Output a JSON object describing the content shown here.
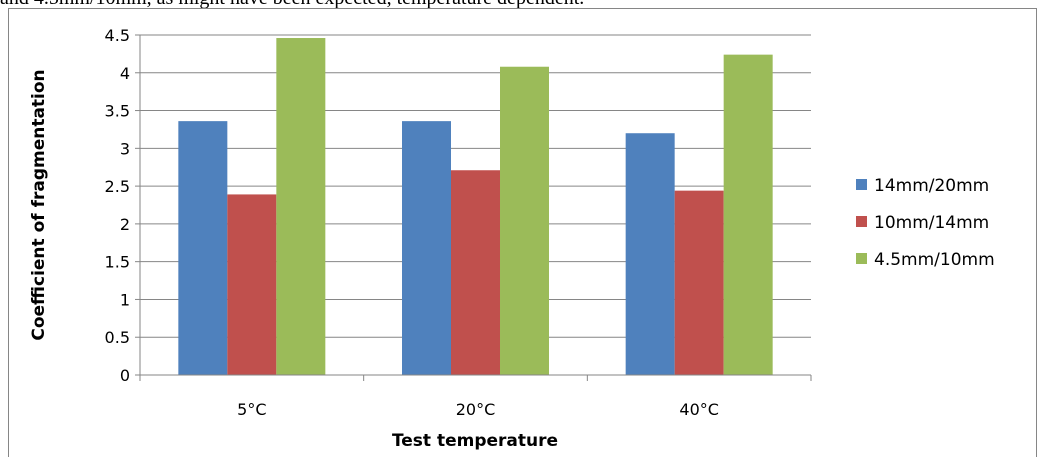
{
  "top_text": "and 4.5mm/10mm, as might have been expected, temperature dependent.",
  "chart_data": {
    "type": "bar",
    "title": "",
    "xlabel": "Test temperature",
    "ylabel": "Coefficient of fragmentation",
    "categories": [
      "5°C",
      "20°C",
      "40°C"
    ],
    "ylim": [
      0,
      4.5
    ],
    "yticks": [
      0,
      0.5,
      1,
      1.5,
      2,
      2.5,
      3,
      3.5,
      4,
      4.5
    ],
    "ytick_labels": [
      "0",
      "0.5",
      "1",
      "1.5",
      "2",
      "2.5",
      "3",
      "3.5",
      "4",
      "4.5"
    ],
    "grid": true,
    "legend_position": "right",
    "series": [
      {
        "name": "14mm/20mm",
        "color": "#4F81BD",
        "values": [
          3.36,
          3.36,
          3.2
        ]
      },
      {
        "name": "10mm/14mm",
        "color": "#C0504D",
        "values": [
          2.39,
          2.71,
          2.44
        ]
      },
      {
        "name": "4.5mm/10mm",
        "color": "#9BBB59",
        "values": [
          4.46,
          4.08,
          4.24
        ]
      }
    ]
  }
}
